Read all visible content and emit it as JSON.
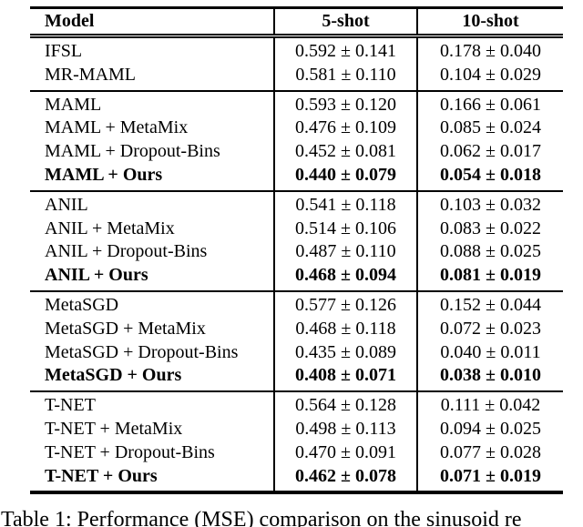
{
  "colors": {
    "background": "#ffffff",
    "text": "#000000",
    "rule": "#000000"
  },
  "caption": "Table 1: Performance (MSE) comparison on the sinusoid re",
  "table": {
    "columns": [
      "Model",
      "5-shot",
      "10-shot"
    ],
    "groups": [
      {
        "rows": [
          {
            "model": "IFSL",
            "shot5": "0.592 ± 0.141",
            "shot10": "0.178 ± 0.040",
            "bold": false
          },
          {
            "model": "MR-MAML",
            "shot5": "0.581 ± 0.110",
            "shot10": "0.104 ± 0.029",
            "bold": false
          }
        ]
      },
      {
        "rows": [
          {
            "model": "MAML",
            "shot5": "0.593 ± 0.120",
            "shot10": "0.166 ± 0.061",
            "bold": false
          },
          {
            "model": "MAML + MetaMix",
            "shot5": "0.476 ± 0.109",
            "shot10": "0.085 ± 0.024",
            "bold": false
          },
          {
            "model": "MAML + Dropout-Bins",
            "shot5": "0.452 ± 0.081",
            "shot10": "0.062 ± 0.017",
            "bold": false
          },
          {
            "model": "MAML + Ours",
            "shot5": "0.440 ± 0.079",
            "shot10": "0.054 ± 0.018",
            "bold": true
          }
        ]
      },
      {
        "rows": [
          {
            "model": "ANIL",
            "shot5": "0.541 ± 0.118",
            "shot10": "0.103 ± 0.032",
            "bold": false
          },
          {
            "model": "ANIL + MetaMix",
            "shot5": "0.514 ± 0.106",
            "shot10": "0.083 ± 0.022",
            "bold": false
          },
          {
            "model": "ANIL + Dropout-Bins",
            "shot5": "0.487 ± 0.110",
            "shot10": "0.088 ± 0.025",
            "bold": false
          },
          {
            "model": "ANIL + Ours",
            "shot5": "0.468 ± 0.094",
            "shot10": "0.081 ± 0.019",
            "bold": true
          }
        ]
      },
      {
        "rows": [
          {
            "model": "MetaSGD",
            "shot5": "0.577 ± 0.126",
            "shot10": "0.152 ± 0.044",
            "bold": false
          },
          {
            "model": "MetaSGD + MetaMix",
            "shot5": "0.468 ± 0.118",
            "shot10": "0.072 ± 0.023",
            "bold": false
          },
          {
            "model": "MetaSGD + Dropout-Bins",
            "shot5": "0.435 ± 0.089",
            "shot10": "0.040 ± 0.011",
            "bold": false
          },
          {
            "model": "MetaSGD + Ours",
            "shot5": "0.408 ± 0.071",
            "shot10": "0.038 ± 0.010",
            "bold": true
          }
        ]
      },
      {
        "rows": [
          {
            "model": "T-NET",
            "shot5": "0.564 ± 0.128",
            "shot10": "0.111 ± 0.042",
            "bold": false
          },
          {
            "model": "T-NET + MetaMix",
            "shot5": "0.498 ± 0.113",
            "shot10": "0.094 ± 0.025",
            "bold": false
          },
          {
            "model": "T-NET + Dropout-Bins",
            "shot5": "0.470 ± 0.091",
            "shot10": "0.077 ± 0.028",
            "bold": false
          },
          {
            "model": "T-NET + Ours",
            "shot5": "0.462 ± 0.078",
            "shot10": "0.071 ± 0.019",
            "bold": true
          }
        ]
      }
    ]
  }
}
